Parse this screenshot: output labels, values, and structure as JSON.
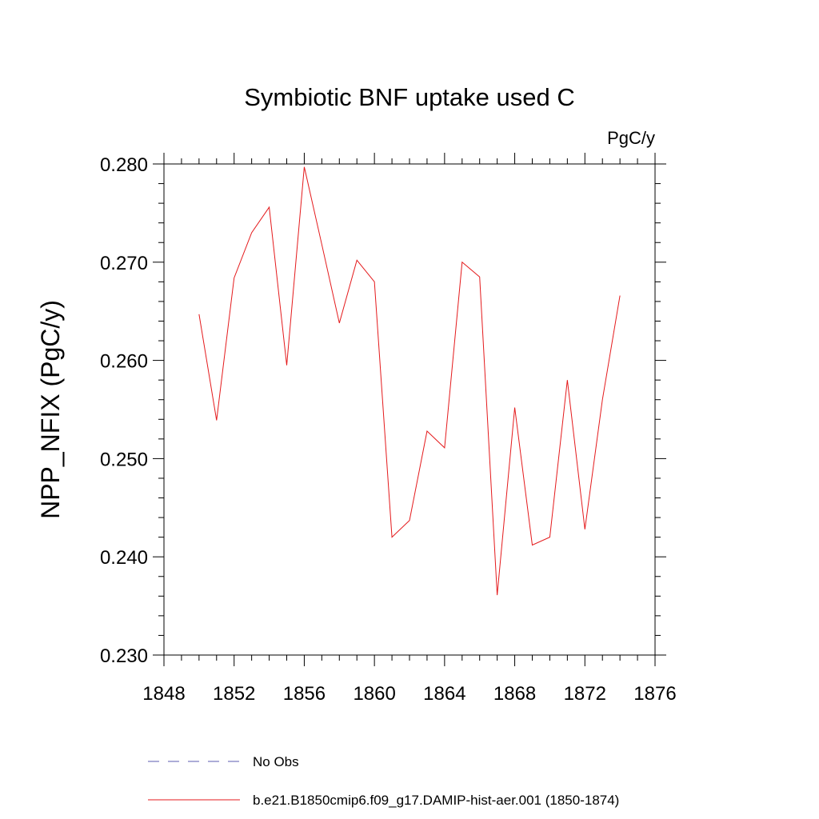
{
  "chart_data": {
    "type": "line",
    "title": "Symbiotic BNF uptake used C",
    "units_label": "PgC/y",
    "xlabel": "",
    "ylabel": "NPP_NFIX  (PgC/y)",
    "xlim": [
      1848,
      1876
    ],
    "ylim": [
      0.23,
      0.28
    ],
    "x_ticks": [
      1848,
      1852,
      1856,
      1860,
      1864,
      1868,
      1872,
      1876
    ],
    "x_tick_labels": [
      "1848",
      "1852",
      "1856",
      "1860",
      "1864",
      "1868",
      "1872",
      "1876"
    ],
    "y_ticks": [
      0.23,
      0.24,
      0.25,
      0.26,
      0.27,
      0.28
    ],
    "y_tick_labels": [
      "0.230",
      "0.240",
      "0.250",
      "0.260",
      "0.270",
      "0.280"
    ],
    "grid": false,
    "legend_placement": "bottom",
    "series": [
      {
        "name": "b.e21.B1850cmip6.f09_g17.DAMIP-hist-aer.001 (1850-1874)",
        "color": "#e41a1c",
        "x": [
          1850,
          1851,
          1852,
          1853,
          1854,
          1855,
          1856,
          1857,
          1858,
          1859,
          1860,
          1861,
          1862,
          1863,
          1864,
          1865,
          1866,
          1867,
          1868,
          1869,
          1870,
          1871,
          1872,
          1873,
          1874
        ],
        "y": [
          0.2647,
          0.2539,
          0.2684,
          0.273,
          0.2756,
          0.2595,
          0.2797,
          0.2718,
          0.2638,
          0.2702,
          0.268,
          0.242,
          0.2437,
          0.2528,
          0.2511,
          0.27,
          0.2685,
          0.2361,
          0.2552,
          0.2412,
          0.242,
          0.258,
          0.2428,
          0.256,
          0.2666
        ]
      }
    ],
    "legend": [
      {
        "label": "No Obs",
        "style": "dashed",
        "color": "#5b5bb0"
      },
      {
        "label": "b.e21.B1850cmip6.f09_g17.DAMIP-hist-aer.001 (1850-1874)",
        "style": "solid",
        "color": "#e41a1c"
      }
    ]
  }
}
